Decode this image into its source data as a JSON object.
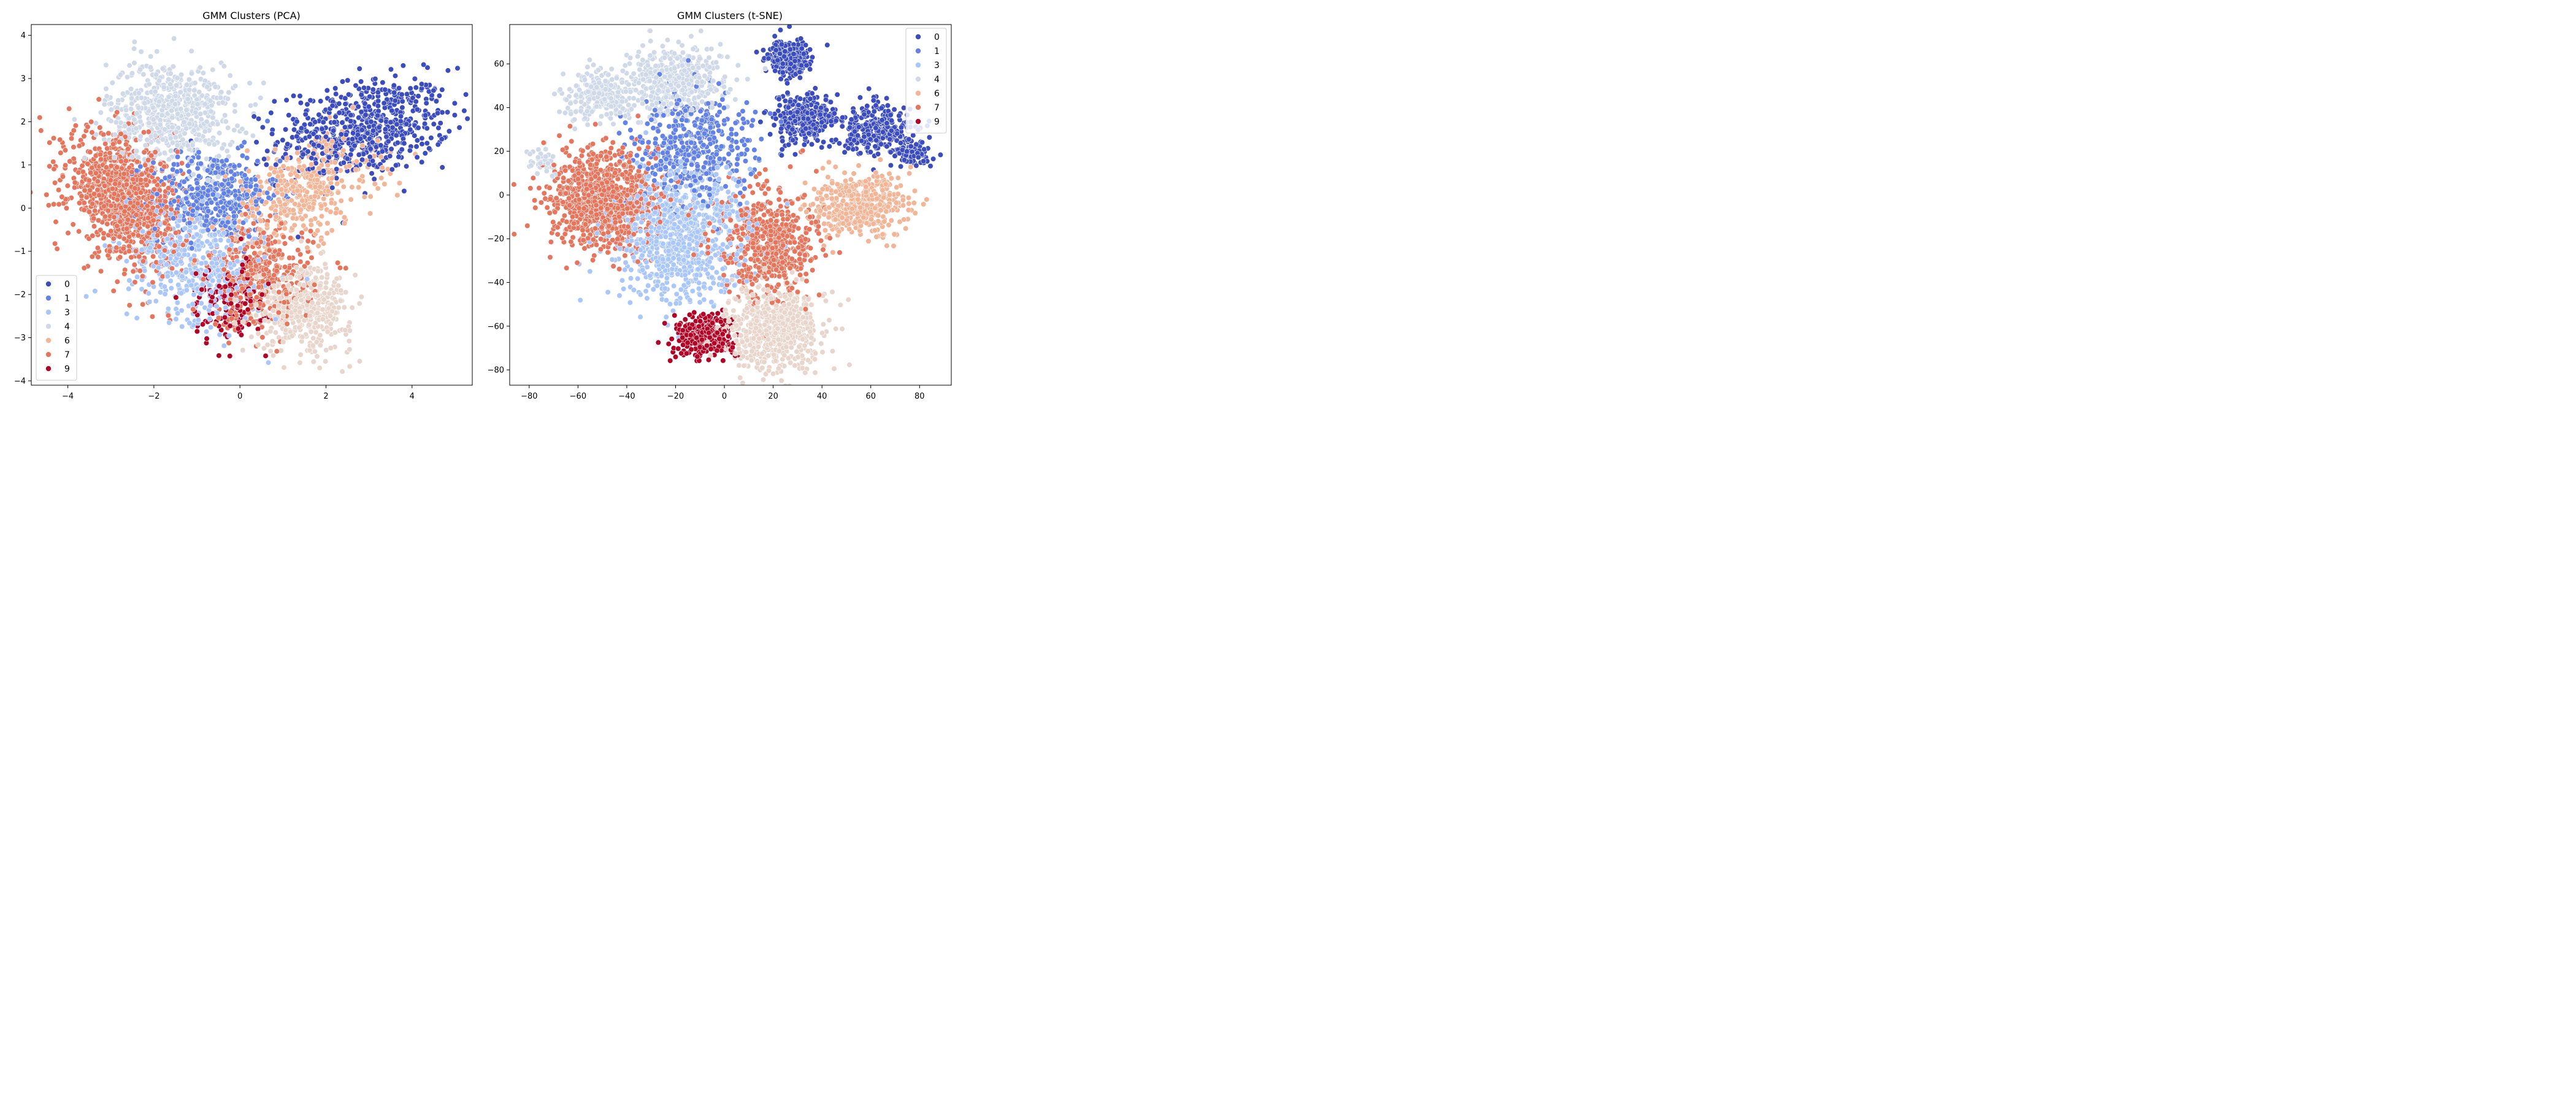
{
  "palette": {
    "0": "#3b4cc0",
    "1": "#6282ea",
    "3": "#aac7fd",
    "4": "#cfd9e8",
    "6": "#f4b597",
    "7": "#e7745b",
    "8": "#e8d6cc",
    "9": "#b40426"
  },
  "legend_labels": [
    "0",
    "1",
    "3",
    "4",
    "6",
    "7",
    "9"
  ],
  "chart_data": [
    {
      "type": "scatter",
      "title": "GMM Clusters (PCA)",
      "xlabel": "",
      "ylabel": "",
      "xlim": [
        -4.85,
        5.4
      ],
      "ylim": [
        -4.1,
        4.25
      ],
      "xticks": [
        -4,
        -2,
        0,
        2,
        4
      ],
      "yticks": [
        -4,
        -3,
        -2,
        -1,
        0,
        1,
        2,
        3,
        4
      ],
      "xtick_labels": [
        "−4",
        "−2",
        "0",
        "2",
        "4"
      ],
      "ytick_labels": [
        "−4",
        "−3",
        "−2",
        "−1",
        "0",
        "1",
        "2",
        "3",
        "4"
      ],
      "grid": false,
      "legend": {
        "placement": "lower-left",
        "entries": [
          "0",
          "1",
          "3",
          "4",
          "6",
          "7",
          "9"
        ]
      },
      "clusters": [
        {
          "label": "0",
          "x_center": 2.9,
          "y_center": 1.85,
          "x_spread": 1.0,
          "y_spread": 0.55,
          "tilt": 0.25,
          "n": 650
        },
        {
          "label": "1",
          "x_center": -0.6,
          "y_center": 0.3,
          "x_spread": 0.75,
          "y_spread": 0.5,
          "tilt": 0,
          "n": 420
        },
        {
          "label": "3",
          "x_center": -1.0,
          "y_center": -1.3,
          "x_spread": 0.8,
          "y_spread": 0.65,
          "tilt": -0.3,
          "n": 500
        },
        {
          "label": "4",
          "x_center": -1.6,
          "y_center": 2.2,
          "x_spread": 0.75,
          "y_spread": 0.6,
          "tilt": 0,
          "n": 650
        },
        {
          "label": "6",
          "x_center": 1.5,
          "y_center": 0.4,
          "x_spread": 0.85,
          "y_spread": 0.55,
          "tilt": 0.45,
          "n": 420
        },
        {
          "label": "7",
          "x_center": -2.7,
          "y_center": 0.2,
          "x_spread": 0.65,
          "y_spread": 0.7,
          "tilt": -0.35,
          "n": 1000
        },
        {
          "label": "7",
          "x_center": 0.5,
          "y_center": -1.6,
          "x_spread": 0.6,
          "y_spread": 0.6,
          "tilt": 0,
          "n": 380
        },
        {
          "label": "8",
          "x_center": 1.5,
          "y_center": -2.3,
          "x_spread": 0.55,
          "y_spread": 0.5,
          "tilt": 0,
          "n": 450
        },
        {
          "label": "9",
          "x_center": -0.3,
          "y_center": -2.2,
          "x_spread": 0.45,
          "y_spread": 0.45,
          "tilt": 0,
          "n": 150
        }
      ]
    },
    {
      "type": "scatter",
      "title": "GMM Clusters (t-SNE)",
      "xlabel": "",
      "ylabel": "",
      "xlim": [
        -88,
        93
      ],
      "ylim": [
        -87,
        78
      ],
      "xticks": [
        -80,
        -60,
        -40,
        -20,
        0,
        20,
        40,
        60,
        80
      ],
      "yticks": [
        -80,
        -60,
        -40,
        -20,
        0,
        20,
        40,
        60
      ],
      "xtick_labels": [
        "−80",
        "−60",
        "−40",
        "−20",
        "0",
        "20",
        "40",
        "60",
        "80"
      ],
      "ytick_labels": [
        "−80",
        "−60",
        "−40",
        "−20",
        "0",
        "20",
        "40",
        "60"
      ],
      "grid": false,
      "legend": {
        "placement": "top-right",
        "entries": [
          "0",
          "1",
          "3",
          "4",
          "6",
          "7",
          "9"
        ]
      },
      "clusters": [
        {
          "label": "0",
          "x_center": 26,
          "y_center": 63,
          "x_spread": 4,
          "y_spread": 4,
          "tilt": 0,
          "n": 250
        },
        {
          "label": "0",
          "x_center": 32,
          "y_center": 35,
          "x_spread": 7,
          "y_spread": 6,
          "tilt": 0,
          "n": 300
        },
        {
          "label": "0",
          "x_center": 62,
          "y_center": 30,
          "x_spread": 8,
          "y_spread": 6,
          "tilt": 0,
          "n": 300
        },
        {
          "label": "0",
          "x_center": 78,
          "y_center": 18,
          "x_spread": 4,
          "y_spread": 3,
          "tilt": 0,
          "n": 80
        },
        {
          "label": "1",
          "x_center": -12,
          "y_center": 22,
          "x_spread": 12,
          "y_spread": 12,
          "tilt": 0,
          "n": 450
        },
        {
          "label": "3",
          "x_center": -18,
          "y_center": -18,
          "x_spread": 14,
          "y_spread": 15,
          "tilt": 0,
          "n": 900
        },
        {
          "label": "4",
          "x_center": -20,
          "y_center": 52,
          "x_spread": 10,
          "y_spread": 8,
          "tilt": 0,
          "n": 450
        },
        {
          "label": "4",
          "x_center": -50,
          "y_center": 45,
          "x_spread": 7,
          "y_spread": 6,
          "tilt": 0,
          "n": 250
        },
        {
          "label": "4",
          "x_center": -75,
          "y_center": 15,
          "x_spread": 3,
          "y_spread": 3,
          "tilt": 0,
          "n": 40
        },
        {
          "label": "6",
          "x_center": 55,
          "y_center": -5,
          "x_spread": 10,
          "y_spread": 7,
          "tilt": 0,
          "n": 450
        },
        {
          "label": "7",
          "x_center": -50,
          "y_center": -2,
          "x_spread": 11,
          "y_spread": 12,
          "tilt": 0,
          "n": 900
        },
        {
          "label": "7",
          "x_center": 18,
          "y_center": -22,
          "x_spread": 10,
          "y_spread": 12,
          "tilt": 0,
          "n": 550
        },
        {
          "label": "8",
          "x_center": 20,
          "y_center": -62,
          "x_spread": 10,
          "y_spread": 10,
          "tilt": 0,
          "n": 650
        },
        {
          "label": "9",
          "x_center": -8,
          "y_center": -65,
          "x_spread": 6,
          "y_spread": 5,
          "tilt": 0,
          "n": 280
        }
      ]
    }
  ]
}
